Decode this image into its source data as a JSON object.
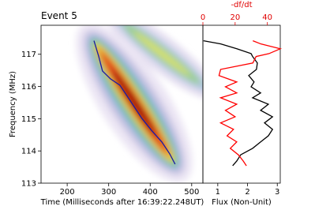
{
  "chart_data": [
    {
      "type": "line",
      "title": "Event 5",
      "xlabel": "Time (Milliseconds after 16:39:22.248UT)",
      "ylabel": "Frequency (MHz)",
      "xlim": [
        137,
        527
      ],
      "ylim": [
        113,
        117.9
      ],
      "xticks": [
        200,
        300,
        400,
        500
      ],
      "yticks": [
        113,
        114,
        115,
        116,
        117
      ],
      "x": [
        264.5,
        276,
        285,
        304,
        327,
        342,
        361,
        380,
        403,
        428,
        447,
        460
      ],
      "series": [
        {
          "color": "#1a1aa6",
          "values": [
            117.42,
            116.93,
            116.48,
            116.24,
            116.04,
            115.75,
            115.38,
            115.01,
            114.64,
            114.28,
            113.91,
            113.59
          ]
        }
      ]
    },
    {
      "type": "line",
      "orientation": "horizontal",
      "xlabel": "Flux (Non-Unit)",
      "x2label": "-df/dt",
      "xlim": [
        0.5,
        3.1
      ],
      "xticks": [
        1,
        2,
        3
      ],
      "x2lim": [
        0,
        48
      ],
      "x2ticks": [
        0,
        20,
        40
      ],
      "ylim": [
        113,
        117.9
      ],
      "y": [
        117.42,
        117.32,
        117.17,
        117.02,
        116.93,
        116.73,
        116.53,
        116.34,
        116.14,
        115.99,
        115.8,
        115.65,
        115.45,
        115.26,
        115.06,
        114.87,
        114.67,
        114.47,
        114.28,
        114.08,
        113.88,
        113.69,
        113.54
      ],
      "series": [
        {
          "color": "#000000",
          "values": [
            0.52,
            1.1,
            1.64,
            2.12,
            2.17,
            2.33,
            2.3,
            2.04,
            2.22,
            2.12,
            2.44,
            2.17,
            2.7,
            2.44,
            2.84,
            2.57,
            2.84,
            2.7,
            2.44,
            2.17,
            1.77,
            1.64,
            1.5
          ]
        },
        {
          "color": "#ff0000",
          "axis": "x2",
          "values": [
            31,
            36,
            48,
            41,
            33,
            31,
            11,
            10,
            21,
            14,
            21,
            11,
            21,
            14,
            20,
            11,
            19,
            15,
            21,
            17,
            22,
            25,
            27
          ]
        }
      ]
    }
  ]
}
